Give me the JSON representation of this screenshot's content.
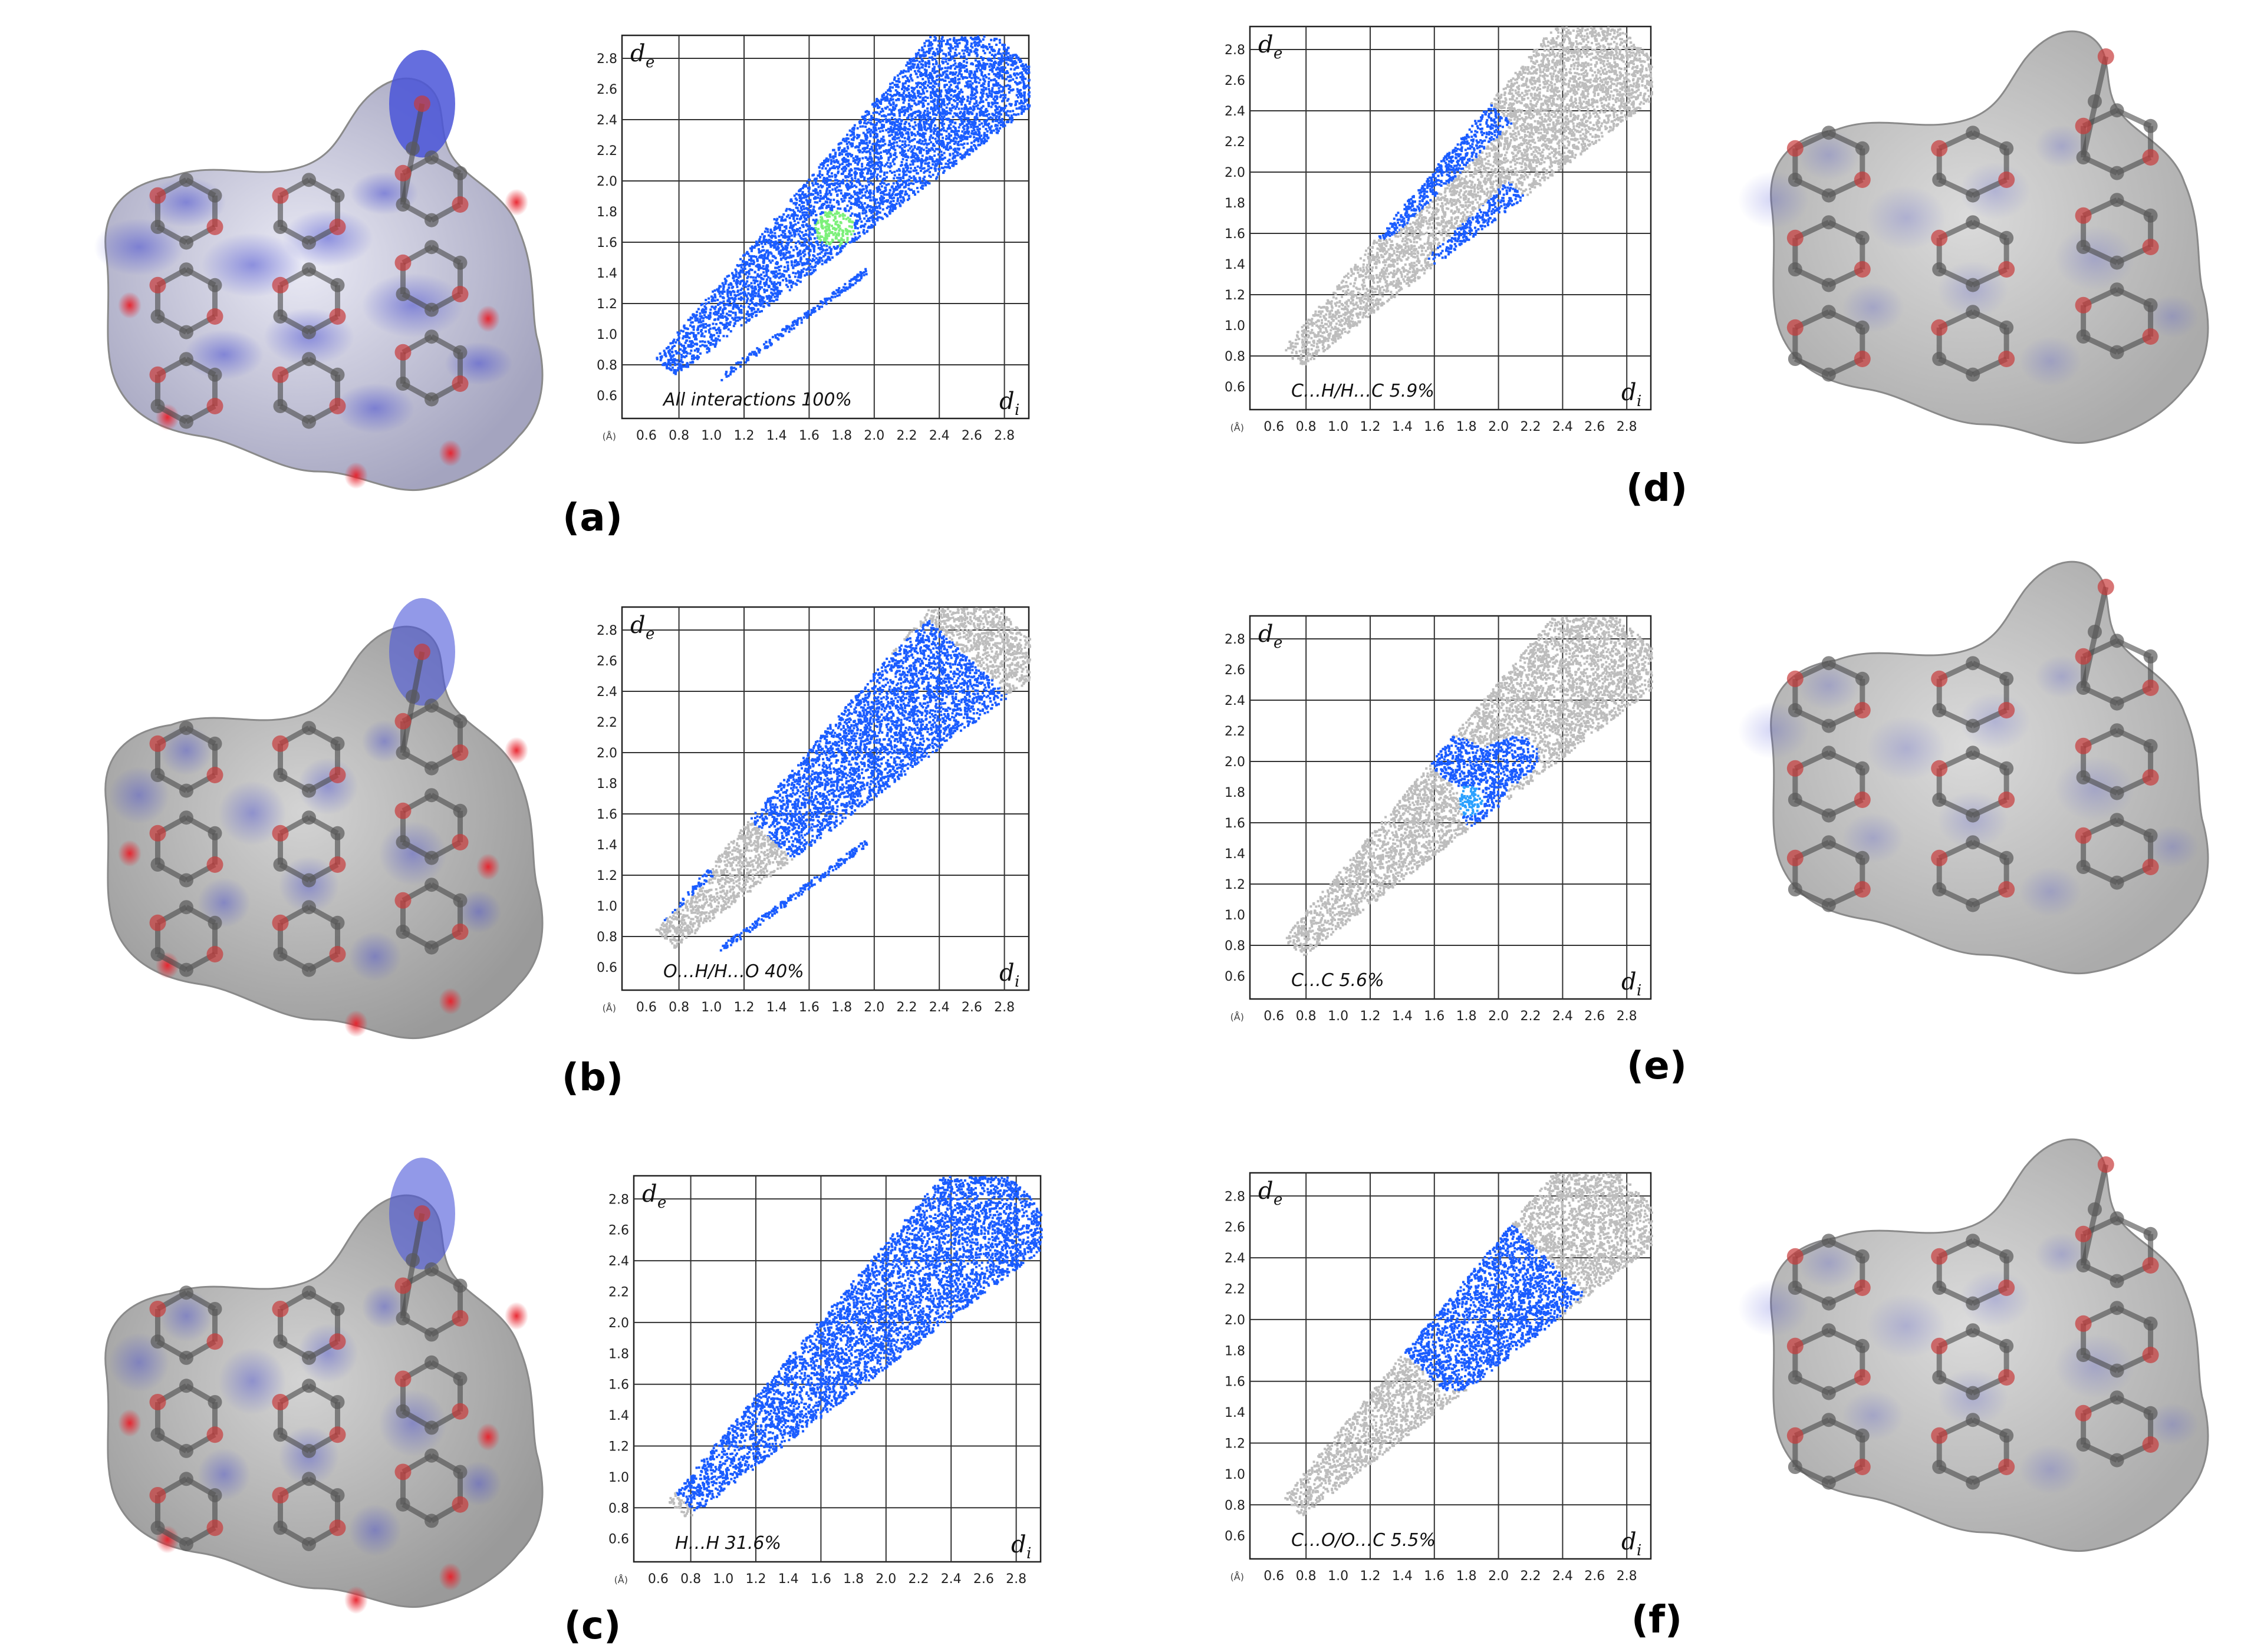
{
  "figure": {
    "panels": [
      {
        "id": "a",
        "label": "(a)"
      },
      {
        "id": "b",
        "label": "(b)"
      },
      {
        "id": "c",
        "label": "(c)"
      },
      {
        "id": "d",
        "label": "(d)"
      },
      {
        "id": "e",
        "label": "(e)"
      },
      {
        "id": "f",
        "label": "(f)"
      }
    ]
  },
  "colors": {
    "highlight": "#1a5cff",
    "hotspot": "#7cf07a",
    "background_points": "#bdbdbd",
    "surface_gray": "#a9a9a9",
    "surface_blue": "#4a55d8",
    "surface_red": "#e8323a"
  },
  "chart_data": [
    {
      "type": "scatter",
      "panel": "a",
      "caption": "All interactions 100%",
      "xlabel": "d",
      "xlabel_sub": "i",
      "ylabel": "d",
      "ylabel_sub": "e",
      "unit": "(Å)",
      "xlim": [
        0.6,
        2.8
      ],
      "ylim": [
        0.6,
        2.8
      ],
      "x_ticks": [
        "0.6",
        "0.8",
        "1.0",
        "1.2",
        "1.4",
        "1.6",
        "1.8",
        "2.0",
        "2.2",
        "2.4",
        "2.6",
        "2.8"
      ],
      "y_ticks": [
        "0.6",
        "0.8",
        "1.0",
        "1.2",
        "1.4",
        "1.6",
        "1.8",
        "2.0",
        "2.2",
        "2.4",
        "2.6",
        "2.8"
      ],
      "highlight_region": {
        "kind": "full",
        "tip": [
          0.8,
          1.1
        ],
        "spike": [
          1.05,
          0.72
        ]
      }
    },
    {
      "type": "scatter",
      "panel": "b",
      "caption": "O…H/H…O  40%",
      "xlabel": "d",
      "xlabel_sub": "i",
      "ylabel": "d",
      "ylabel_sub": "e",
      "unit": "(Å)",
      "xlim": [
        0.6,
        2.8
      ],
      "ylim": [
        0.6,
        2.8
      ],
      "x_ticks": [
        "0.6",
        "0.8",
        "1.0",
        "1.2",
        "1.4",
        "1.6",
        "1.8",
        "2.0",
        "2.2",
        "2.4",
        "2.6",
        "2.8"
      ],
      "y_ticks": [
        "0.6",
        "0.8",
        "1.0",
        "1.2",
        "1.4",
        "1.6",
        "1.8",
        "2.0",
        "2.2",
        "2.4",
        "2.6",
        "2.8"
      ],
      "highlight_region": {
        "kind": "spikes",
        "tip": [
          0.8,
          1.12
        ],
        "spike": [
          1.05,
          0.7
        ]
      }
    },
    {
      "type": "scatter",
      "panel": "c",
      "caption": "H…H  31.6%",
      "xlabel": "d",
      "xlabel_sub": "i",
      "ylabel": "d",
      "ylabel_sub": "e",
      "unit": "(Å)",
      "xlim": [
        0.6,
        2.8
      ],
      "ylim": [
        0.6,
        2.8
      ],
      "x_ticks": [
        "0.6",
        "0.8",
        "1.0",
        "1.2",
        "1.4",
        "1.6",
        "1.8",
        "2.0",
        "2.2",
        "2.4",
        "2.6",
        "2.8"
      ],
      "y_ticks": [
        "0.6",
        "0.8",
        "1.0",
        "1.2",
        "1.4",
        "1.6",
        "1.8",
        "2.0",
        "2.2",
        "2.4",
        "2.6",
        "2.8"
      ],
      "highlight_region": {
        "kind": "diagonal",
        "tip": [
          0.8,
          0.78
        ]
      }
    },
    {
      "type": "scatter",
      "panel": "d",
      "caption": "C…H/H…C  5.9%",
      "xlabel": "d",
      "xlabel_sub": "i",
      "ylabel": "d",
      "ylabel_sub": "e",
      "unit": "(Å)",
      "xlim": [
        0.6,
        2.8
      ],
      "ylim": [
        0.6,
        2.8
      ],
      "x_ticks": [
        "0.6",
        "0.8",
        "1.0",
        "1.2",
        "1.4",
        "1.6",
        "1.8",
        "2.0",
        "2.2",
        "2.4",
        "2.6",
        "2.8"
      ],
      "y_ticks": [
        "0.6",
        "0.8",
        "1.0",
        "1.2",
        "1.4",
        "1.6",
        "1.8",
        "2.0",
        "2.2",
        "2.4",
        "2.6",
        "2.8"
      ],
      "highlight_region": {
        "kind": "wings",
        "tip": [
          1.2,
          1.5
        ]
      }
    },
    {
      "type": "scatter",
      "panel": "e",
      "caption": "C…C  5.6%",
      "xlabel": "d",
      "xlabel_sub": "i",
      "ylabel": "d",
      "ylabel_sub": "e",
      "unit": "(Å)",
      "xlim": [
        0.6,
        2.8
      ],
      "ylim": [
        0.6,
        2.8
      ],
      "x_ticks": [
        "0.6",
        "0.8",
        "1.0",
        "1.2",
        "1.4",
        "1.6",
        "1.8",
        "2.0",
        "2.2",
        "2.4",
        "2.6",
        "2.8"
      ],
      "y_ticks": [
        "0.6",
        "0.8",
        "1.0",
        "1.2",
        "1.4",
        "1.6",
        "1.8",
        "2.0",
        "2.2",
        "2.4",
        "2.6",
        "2.8"
      ],
      "highlight_region": {
        "kind": "blob",
        "center": [
          1.85,
          1.85
        ]
      }
    },
    {
      "type": "scatter",
      "panel": "f",
      "caption": "C…O/O…C  5.5%",
      "xlabel": "d",
      "xlabel_sub": "i",
      "ylabel": "d",
      "ylabel_sub": "e",
      "unit": "(Å)",
      "xlim": [
        0.6,
        2.8
      ],
      "ylim": [
        0.6,
        2.8
      ],
      "x_ticks": [
        "0.6",
        "0.8",
        "1.0",
        "1.2",
        "1.4",
        "1.6",
        "1.8",
        "2.0",
        "2.2",
        "2.4",
        "2.6",
        "2.8"
      ],
      "y_ticks": [
        "0.6",
        "0.8",
        "1.0",
        "1.2",
        "1.4",
        "1.6",
        "1.8",
        "2.0",
        "2.2",
        "2.4",
        "2.6",
        "2.8"
      ],
      "highlight_region": {
        "kind": "wedge",
        "tip": [
          1.55,
          1.6
        ]
      }
    }
  ]
}
